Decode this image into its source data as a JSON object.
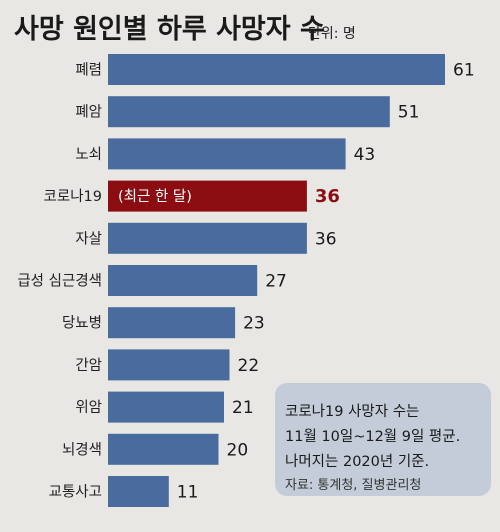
{
  "chart_data": {
    "type": "bar",
    "orientation": "horizontal",
    "title": "사망 원인별 하루 사망자 수",
    "unit_label": "단위: 명",
    "categories": [
      "폐렴",
      "폐암",
      "노쇠",
      "코로나19",
      "자살",
      "급성 심근경색",
      "당뇨병",
      "간암",
      "위암",
      "뇌경색",
      "교통사고"
    ],
    "values": [
      61,
      51,
      43,
      36,
      36,
      27,
      23,
      22,
      21,
      20,
      11
    ],
    "highlight_index": 3,
    "highlight_note": "(최근 한 달)",
    "xlim": [
      0,
      61
    ],
    "grid": false,
    "note": {
      "lines": [
        "코로나19 사망자 수는",
        "11월 10일~12월 9일 평균.",
        "나머지는 2020년 기준."
      ],
      "source": "자료: 통계청, 질병관리청"
    }
  },
  "colors": {
    "background": "#e9e7e4",
    "bar": "#4a6b9d",
    "highlight_bar": "#8b0d12",
    "highlight_value": "#8b0d12",
    "note_box": "#c3ccd8"
  }
}
